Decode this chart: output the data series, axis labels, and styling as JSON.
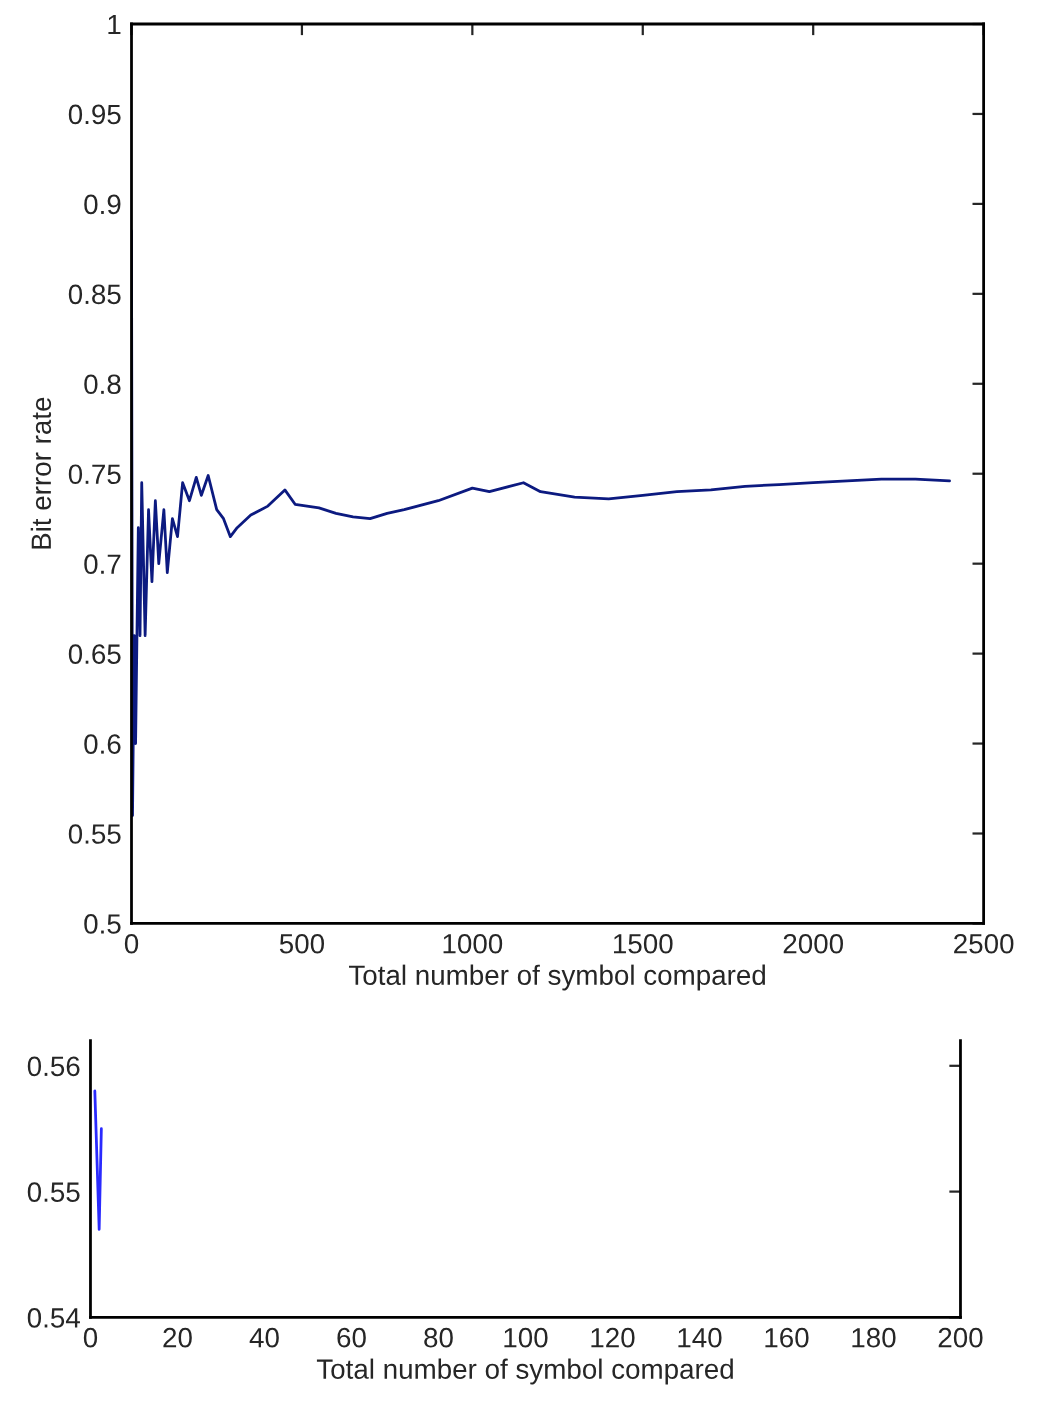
{
  "chart_data": [
    {
      "type": "line",
      "ylabel": "Bit error rate",
      "xlabel": "Total number of symbol compared",
      "xlim": [
        0,
        2500
      ],
      "xticks": [
        0,
        500,
        1000,
        1500,
        2000,
        2500
      ],
      "ylim": [
        0.5,
        1
      ],
      "yticks": [
        0.5,
        0.55,
        0.6,
        0.65,
        0.7,
        0.75,
        0.8,
        0.85,
        0.9,
        0.95,
        1
      ],
      "grid": false,
      "legend": false,
      "series": [
        {
          "color": "#0c1a80",
          "x": [
            0,
            3,
            8,
            12,
            20,
            25,
            30,
            40,
            50,
            60,
            70,
            80,
            95,
            105,
            120,
            135,
            150,
            170,
            190,
            205,
            225,
            250,
            270,
            290,
            310,
            350,
            400,
            450,
            480,
            550,
            600,
            650,
            700,
            750,
            800,
            900,
            1000,
            1050,
            1150,
            1200,
            1300,
            1400,
            1500,
            1600,
            1700,
            1800,
            1900,
            2000,
            2100,
            2200,
            2300,
            2400
          ],
          "values": [
            0.885,
            0.56,
            0.66,
            0.6,
            0.72,
            0.66,
            0.745,
            0.66,
            0.73,
            0.69,
            0.735,
            0.7,
            0.73,
            0.695,
            0.725,
            0.715,
            0.745,
            0.735,
            0.748,
            0.738,
            0.749,
            0.73,
            0.725,
            0.715,
            0.72,
            0.727,
            0.732,
            0.741,
            0.733,
            0.731,
            0.728,
            0.726,
            0.725,
            0.728,
            0.73,
            0.735,
            0.742,
            0.74,
            0.745,
            0.74,
            0.737,
            0.736,
            0.738,
            0.74,
            0.741,
            0.743,
            0.744,
            0.745,
            0.746,
            0.747,
            0.747,
            0.746
          ]
        }
      ]
    },
    {
      "type": "line",
      "xlabel": "Total number of symbol compared",
      "xlim": [
        0,
        200
      ],
      "xticks": [
        0,
        20,
        40,
        60,
        80,
        100,
        120,
        140,
        160,
        180,
        200
      ],
      "ylim": [
        0.54,
        0.562
      ],
      "yticks": [
        0.54,
        0.55,
        0.56
      ],
      "grid": false,
      "legend": false,
      "series": [
        {
          "color": "#2a2aff",
          "x": [
            1,
            2,
            2.5
          ],
          "values": [
            0.558,
            0.547,
            0.555
          ]
        }
      ]
    }
  ]
}
